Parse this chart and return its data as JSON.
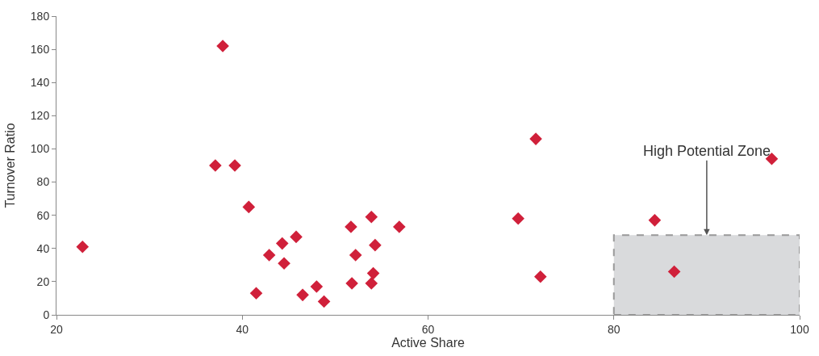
{
  "chart_data": {
    "type": "scatter",
    "xlabel": "Active Share",
    "ylabel": "Turnover Ratio",
    "marker": "diamond",
    "grid": false,
    "legend": false,
    "xlim": [
      20,
      100
    ],
    "xticks": [
      20,
      40,
      60,
      80,
      100
    ],
    "ylim": [
      0,
      180
    ],
    "yticks": [
      0,
      20,
      40,
      60,
      80,
      100,
      120,
      140,
      160,
      180
    ],
    "series": [
      {
        "color": "#d0203a",
        "x": [
          22.8,
          37.9,
          37.1,
          39.2,
          40.7,
          41.5,
          42.9,
          44.3,
          44.5,
          45.8,
          46.5,
          48.0,
          48.8,
          51.7,
          51.8,
          52.2,
          53.9,
          53.9,
          54.1,
          54.3,
          56.9,
          69.7,
          71.6,
          72.1,
          84.4,
          86.5,
          97.0
        ],
        "values": [
          41,
          162,
          90,
          90,
          65,
          13,
          36,
          43,
          31,
          47,
          12,
          17,
          8,
          53,
          19,
          36,
          59,
          19,
          25,
          42,
          53,
          58,
          106,
          23,
          57,
          26,
          94
        ]
      }
    ],
    "bands": [
      {
        "axis": "x",
        "from": 80,
        "to": 100,
        "color": "#d9dadc"
      }
    ],
    "annotations": [
      {
        "text": "High Potential Zone",
        "x": 90,
        "y": 48
      }
    ]
  }
}
